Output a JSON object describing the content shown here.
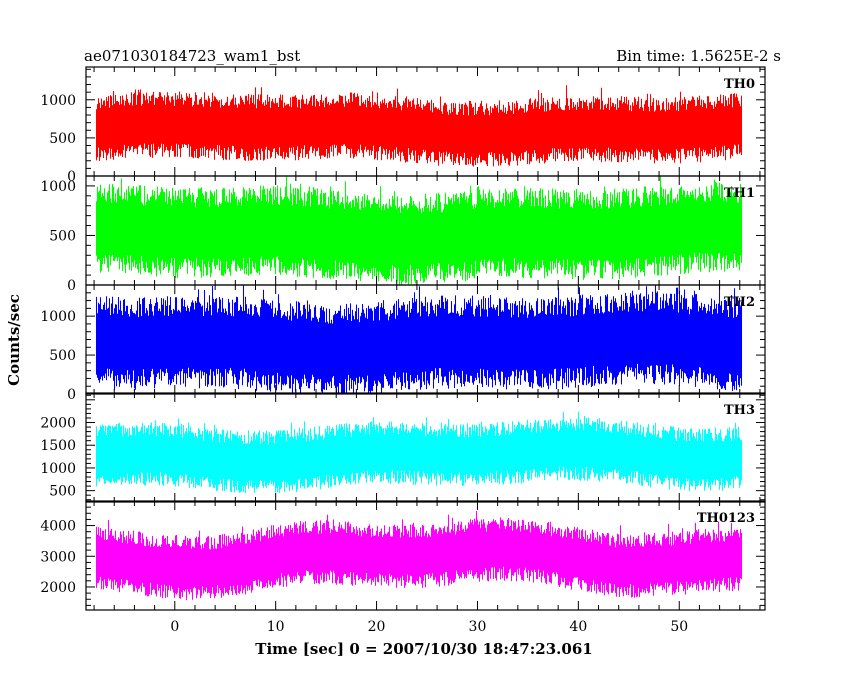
{
  "header": {
    "left_title": "ae071030184723_wam1_bst",
    "right_title": "Bin time: 1.5625E-2 s"
  },
  "chart_data": {
    "type": "line",
    "title": "ae071030184723_wam1_bst",
    "bin_time": "Bin time: 1.5625E-2 s",
    "xlabel": "Time [sec] 0 = 2007/10/30 18:47:23.061",
    "ylabel": "Counts/sec",
    "xlim": [
      -8.8,
      58.5
    ],
    "x_range_data": [
      -7.8,
      56.1
    ],
    "x_ticks": [
      0,
      10,
      20,
      30,
      40,
      50
    ],
    "x_tick_labels": [
      "0",
      "10",
      "20",
      "30",
      "40",
      "50"
    ],
    "grid": false,
    "panels": [
      {
        "name": "TH0",
        "color": "#ff0000",
        "ylim": [
          0,
          1430
        ],
        "y_ticks": [
          0,
          500,
          1000
        ],
        "y_tick_labels": [
          "0",
          "500",
          "1000"
        ],
        "baseline": 620,
        "spread": 440
      },
      {
        "name": "TH1",
        "color": "#00ff00",
        "ylim": [
          0,
          1100
        ],
        "y_ticks": [
          0,
          500,
          1000
        ],
        "y_tick_labels": [
          "0",
          "500",
          "1000"
        ],
        "baseline": 520,
        "spread": 460
      },
      {
        "name": "TH2",
        "color": "#0000ff",
        "ylim": [
          0,
          1400
        ],
        "y_ticks": [
          0,
          500,
          1000
        ],
        "y_tick_labels": [
          "0",
          "500",
          "1000"
        ],
        "baseline": 650,
        "spread": 600
      },
      {
        "name": "TH3",
        "color": "#00ffff",
        "ylim": [
          250,
          2650
        ],
        "y_ticks": [
          500,
          1000,
          1500,
          2000
        ],
        "y_tick_labels": [
          "500",
          "1000",
          "1500",
          "2000"
        ],
        "baseline": 1280,
        "spread": 700
      },
      {
        "name": "TH0123",
        "color": "#ff00ff",
        "ylim": [
          1250,
          4800
        ],
        "y_ticks": [
          2000,
          3000,
          4000
        ],
        "y_tick_labels": [
          "2000",
          "3000",
          "4000"
        ],
        "baseline": 2950,
        "spread": 1050
      }
    ]
  }
}
